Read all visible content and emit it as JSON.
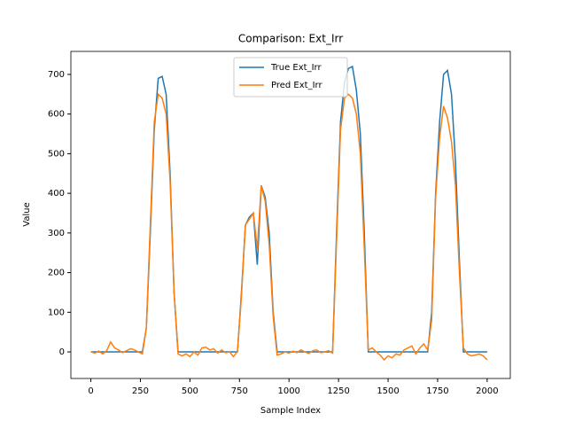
{
  "chart_data": {
    "type": "line",
    "title": "Comparison: Ext_Irr",
    "x_label": "Sample Index",
    "y_label": "Value",
    "x": [
      0,
      20,
      40,
      60,
      80,
      100,
      120,
      140,
      160,
      180,
      200,
      220,
      240,
      260,
      280,
      300,
      320,
      340,
      360,
      380,
      400,
      420,
      440,
      460,
      480,
      500,
      520,
      540,
      560,
      580,
      600,
      620,
      640,
      660,
      680,
      700,
      720,
      740,
      760,
      780,
      800,
      820,
      840,
      860,
      880,
      900,
      920,
      940,
      960,
      980,
      1000,
      1020,
      1040,
      1060,
      1080,
      1100,
      1120,
      1140,
      1160,
      1180,
      1200,
      1220,
      1240,
      1260,
      1280,
      1300,
      1320,
      1340,
      1360,
      1380,
      1400,
      1420,
      1440,
      1460,
      1480,
      1500,
      1520,
      1540,
      1560,
      1580,
      1600,
      1620,
      1640,
      1660,
      1680,
      1700,
      1720,
      1740,
      1760,
      1780,
      1800,
      1820,
      1840,
      1860,
      1880,
      1900,
      1920,
      1940,
      1960,
      1980,
      2000
    ],
    "series": [
      {
        "name": "True Ext_Irr",
        "color": "#1f77b4",
        "values": [
          0,
          0,
          0,
          0,
          0,
          0,
          0,
          0,
          0,
          0,
          0,
          0,
          0,
          0,
          60,
          300,
          560,
          690,
          695,
          650,
          450,
          150,
          0,
          0,
          0,
          0,
          0,
          0,
          0,
          0,
          0,
          0,
          0,
          0,
          0,
          0,
          0,
          0,
          150,
          320,
          340,
          350,
          220,
          420,
          390,
          300,
          100,
          0,
          0,
          0,
          0,
          0,
          0,
          0,
          0,
          0,
          0,
          0,
          0,
          0,
          0,
          0,
          300,
          580,
          680,
          715,
          720,
          660,
          550,
          300,
          0,
          0,
          0,
          0,
          0,
          0,
          0,
          0,
          0,
          0,
          0,
          0,
          0,
          0,
          0,
          0,
          100,
          400,
          580,
          700,
          710,
          650,
          480,
          230,
          0,
          0,
          0,
          0,
          0,
          0,
          0
        ]
      },
      {
        "name": "Pred Ext_Irr",
        "color": "#ff7f0e",
        "values": [
          0,
          -3,
          2,
          -5,
          3,
          25,
          10,
          5,
          -2,
          3,
          8,
          5,
          0,
          -5,
          60,
          320,
          580,
          650,
          640,
          600,
          430,
          150,
          -5,
          -10,
          -5,
          -12,
          0,
          -8,
          10,
          12,
          5,
          8,
          -3,
          5,
          -2,
          0,
          -12,
          2,
          140,
          320,
          335,
          350,
          260,
          420,
          380,
          270,
          90,
          -8,
          -5,
          0,
          -3,
          2,
          -2,
          5,
          0,
          -4,
          3,
          5,
          -2,
          0,
          3,
          -3,
          280,
          560,
          640,
          650,
          640,
          600,
          500,
          260,
          5,
          10,
          0,
          -8,
          -20,
          -10,
          -15,
          -5,
          -8,
          5,
          10,
          15,
          -5,
          10,
          20,
          5,
          80,
          390,
          540,
          620,
          590,
          530,
          420,
          200,
          10,
          -5,
          -10,
          -8,
          -5,
          -10,
          -20
        ]
      }
    ],
    "xlim": [
      -100.8,
      2116.8
    ],
    "ylim": [
      -67,
      758
    ],
    "xticks": [
      0,
      250,
      500,
      750,
      1000,
      1250,
      1500,
      1750,
      2000
    ],
    "yticks": [
      0,
      100,
      200,
      300,
      400,
      500,
      600,
      700
    ],
    "legend": "upper center"
  }
}
